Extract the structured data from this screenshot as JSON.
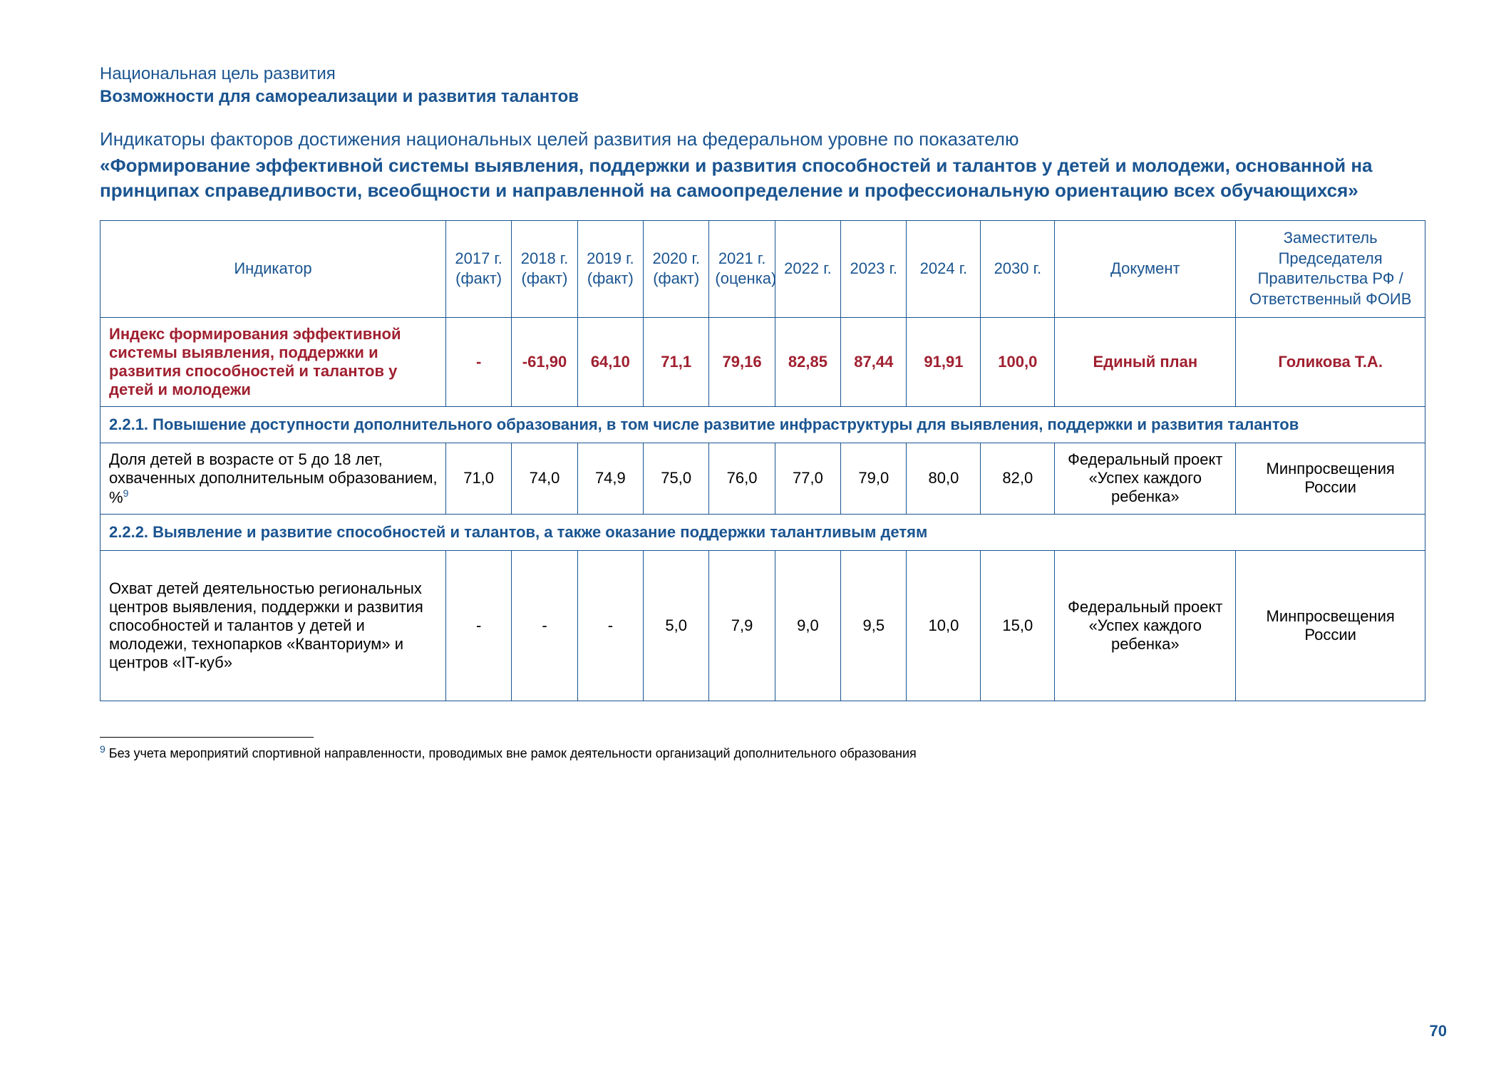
{
  "header": {
    "small": "Национальная цель развития",
    "bold": "Возможности для самореализации и развития талантов"
  },
  "intro": "Индикаторы факторов достижения национальных целей развития на федеральном уровне по показателю",
  "title": "«Формирование эффективной системы выявления, поддержки и развития способностей и талантов у детей и молодежи, основанной на принципах справедливости, всеобщности и направленной на самоопределение и профессиональную ориентацию всех обучающихся»",
  "columns": [
    "Индикатор",
    "2017 г. (факт)",
    "2018 г. (факт)",
    "2019 г. (факт)",
    "2020 г. (факт)",
    "2021 г. (оценка)",
    "2022 г.",
    "2023 г.",
    "2024 г.",
    "2030 г.",
    "Документ",
    "Заместитель Председателя Правительства РФ / Ответственный ФОИВ"
  ],
  "mainRow": {
    "name": "Индекс формирования эффективной системы выявления, поддержки и развития способностей и талантов у детей и молодежи",
    "v": [
      "-",
      "-61,90",
      "64,10",
      "71,1",
      "79,16",
      "82,85",
      "87,44",
      "91,91",
      "100,0"
    ],
    "doc": "Единый план",
    "resp": "Голикова Т.А."
  },
  "section1": "2.2.1. Повышение доступности дополнительного образования, в том числе развитие инфраструктуры для выявления, поддержки и развития талантов",
  "row1": {
    "name": "Доля детей в возрасте от 5 до 18 лет, охваченных дополнительным образованием, %",
    "fnMark": "9",
    "v": [
      "71,0",
      "74,0",
      "74,9",
      "75,0",
      "76,0",
      "77,0",
      "79,0",
      "80,0",
      "82,0"
    ],
    "doc": "Федеральный проект «Успех каждого ребенка»",
    "resp": "Минпросвещения России"
  },
  "section2": "2.2.2. Выявление и развитие способностей и талантов, а также оказание поддержки талантливым детям",
  "row2": {
    "name": "Охват детей деятельностью региональных центров выявления, поддержки и развития способностей и талантов у детей и молодежи, технопарков «Кванториум» и центров «IT-куб»",
    "v": [
      "-",
      "-",
      "-",
      "5,0",
      "7,9",
      "9,0",
      "9,5",
      "10,0",
      "15,0"
    ],
    "doc": "Федеральный проект «Успех каждого ребенка»",
    "resp": "Минпросвещения России"
  },
  "footnote": {
    "mark": "9",
    "text": " Без учета мероприятий спортивной направленности, проводимых вне рамок деятельности организаций дополнительного образования"
  },
  "pageNum": "70"
}
